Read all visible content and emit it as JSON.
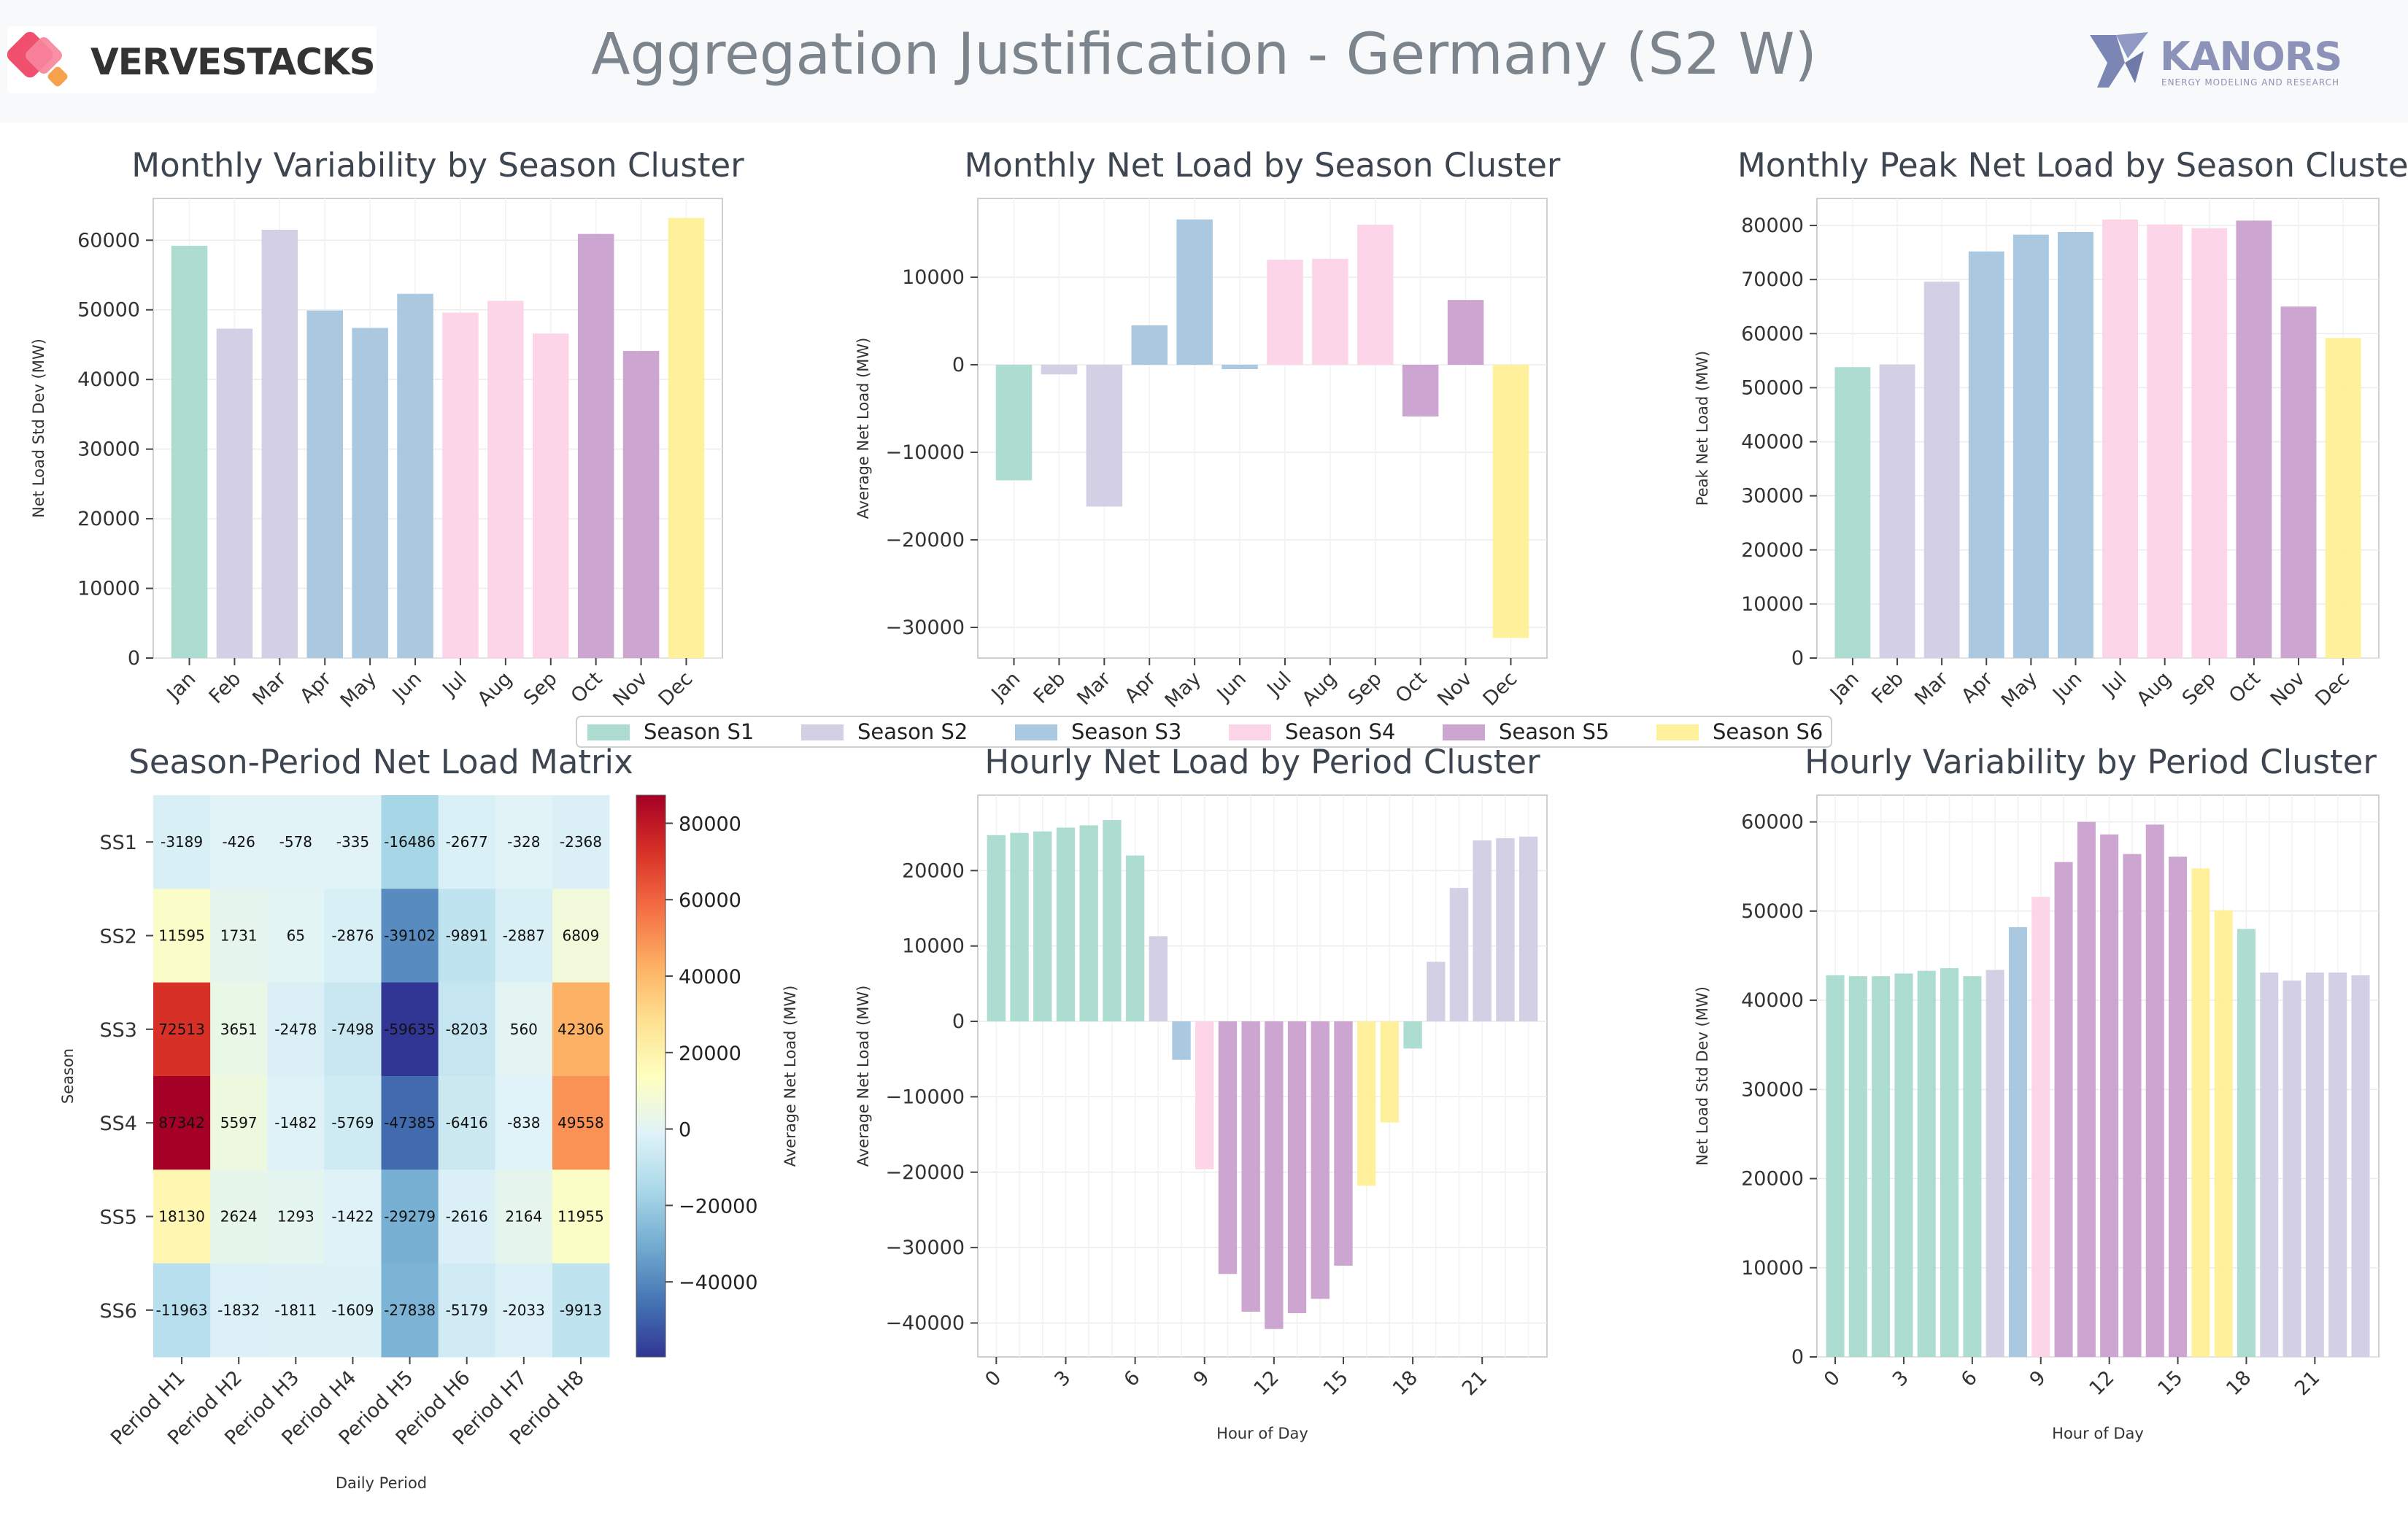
{
  "header": {
    "title": "Aggregation Justification - Germany (S2 W)",
    "logo_left": "VERVESTACKS",
    "logo_right": "KANORS",
    "logo_right_tagline": "ENERGY MODELING AND RESEARCH"
  },
  "colors": {
    "S1": "#a6d9cc",
    "S2": "#cfcce3",
    "S3": "#a3c4de",
    "S4": "#fcd2e6",
    "S5": "#c89dcc",
    "S6": "#fff093"
  },
  "legend": {
    "items": [
      {
        "key": "S1",
        "label": "Season S1"
      },
      {
        "key": "S2",
        "label": "Season S2"
      },
      {
        "key": "S3",
        "label": "Season S3"
      },
      {
        "key": "S4",
        "label": "Season S4"
      },
      {
        "key": "S5",
        "label": "Season S5"
      },
      {
        "key": "S6",
        "label": "Season S6"
      }
    ]
  },
  "chart_data": [
    {
      "id": "monthly-variability",
      "type": "bar",
      "title": "Monthly Variability by Season Cluster",
      "xlabel": "",
      "ylabel": "Net Load Std Dev (MW)",
      "categories": [
        "Jan",
        "Feb",
        "Mar",
        "Apr",
        "May",
        "Jun",
        "Jul",
        "Aug",
        "Sep",
        "Oct",
        "Nov",
        "Dec"
      ],
      "values": [
        59200,
        47300,
        61500,
        49900,
        47400,
        52300,
        49600,
        51300,
        46600,
        60900,
        44100,
        63200
      ],
      "season": [
        "S1",
        "S2",
        "S2",
        "S3",
        "S3",
        "S3",
        "S4",
        "S4",
        "S4",
        "S5",
        "S5",
        "S6"
      ],
      "ylim": [
        0,
        66000
      ],
      "yticks": [
        0,
        10000,
        20000,
        30000,
        40000,
        50000,
        60000
      ],
      "grid": true
    },
    {
      "id": "monthly-net-load",
      "type": "bar",
      "title": "Monthly Net Load by Season Cluster",
      "xlabel": "",
      "ylabel": "Average Net Load (MW)",
      "categories": [
        "Jan",
        "Feb",
        "Mar",
        "Apr",
        "May",
        "Jun",
        "Jul",
        "Aug",
        "Sep",
        "Oct",
        "Nov",
        "Dec"
      ],
      "values": [
        -13200,
        -1100,
        -16200,
        4500,
        16600,
        -500,
        12000,
        12100,
        16000,
        -5900,
        7400,
        -31200
      ],
      "season": [
        "S1",
        "S2",
        "S2",
        "S3",
        "S3",
        "S3",
        "S4",
        "S4",
        "S4",
        "S5",
        "S5",
        "S6"
      ],
      "ylim": [
        -33500,
        19000
      ],
      "yticks": [
        -30000,
        -20000,
        -10000,
        0,
        10000
      ],
      "grid": true
    },
    {
      "id": "monthly-peak-net-load",
      "type": "bar",
      "title": "Monthly Peak Net Load by Season Cluster",
      "xlabel": "",
      "ylabel": "Peak Net Load (MW)",
      "categories": [
        "Jan",
        "Feb",
        "Mar",
        "Apr",
        "May",
        "Jun",
        "Jul",
        "Aug",
        "Sep",
        "Oct",
        "Nov",
        "Dec"
      ],
      "values": [
        53800,
        54300,
        69600,
        75200,
        78300,
        78800,
        81100,
        80200,
        79500,
        80900,
        65000,
        59200
      ],
      "season": [
        "S1",
        "S2",
        "S2",
        "S3",
        "S3",
        "S3",
        "S4",
        "S4",
        "S4",
        "S5",
        "S5",
        "S6"
      ],
      "ylim": [
        0,
        85000
      ],
      "yticks": [
        0,
        10000,
        20000,
        30000,
        40000,
        50000,
        60000,
        70000,
        80000
      ],
      "grid": true
    },
    {
      "id": "season-period-matrix",
      "type": "heatmap",
      "title": "Season-Period Net Load Matrix",
      "xlabel": "Daily Period",
      "ylabel": "Season",
      "colorbar_label": "Average Net Load (MW)",
      "colorbar_ticks": [
        -40000,
        -20000,
        0,
        20000,
        40000,
        60000,
        80000
      ],
      "vmin": -59635,
      "vmax": 87342,
      "x": [
        "Period H1",
        "Period H2",
        "Period H3",
        "Period H4",
        "Period H5",
        "Period H6",
        "Period H7",
        "Period H8"
      ],
      "y": [
        "SS1",
        "SS2",
        "SS3",
        "SS4",
        "SS5",
        "SS6"
      ],
      "values": [
        [
          -3189,
          -426,
          -578,
          -335,
          -16486,
          -2677,
          -328,
          -2368
        ],
        [
          11595,
          1731,
          65,
          -2876,
          -39102,
          -9891,
          -2887,
          6809
        ],
        [
          72513,
          3651,
          -2478,
          -7498,
          -59635,
          -8203,
          560,
          42306
        ],
        [
          87342,
          5597,
          -1482,
          -5769,
          -47385,
          -6416,
          -838,
          49558
        ],
        [
          18130,
          2624,
          1293,
          -1422,
          -29279,
          -2616,
          2164,
          11955
        ],
        [
          -11963,
          -1832,
          -1811,
          -1609,
          -27838,
          -5179,
          -2033,
          -9913
        ]
      ]
    },
    {
      "id": "hourly-net-load",
      "type": "bar",
      "title": "Hourly Net Load by Period Cluster",
      "xlabel": "Hour of Day",
      "ylabel": "Average Net Load (MW)",
      "x": [
        0,
        1,
        2,
        3,
        4,
        5,
        6,
        7,
        8,
        9,
        10,
        11,
        12,
        13,
        14,
        15,
        16,
        17,
        18,
        19,
        20,
        21,
        22,
        23
      ],
      "values": [
        24700,
        25000,
        25200,
        25700,
        26000,
        26700,
        22000,
        11300,
        -5100,
        -19600,
        -33500,
        -38500,
        -40800,
        -38700,
        -36800,
        -32400,
        -21800,
        -13400,
        -3600,
        7900,
        17700,
        24000,
        24300,
        24500
      ],
      "period": [
        "S1",
        "S1",
        "S1",
        "S1",
        "S1",
        "S1",
        "S1",
        "S2",
        "S3",
        "S4",
        "S5",
        "S5",
        "S5",
        "S5",
        "S5",
        "S5",
        "S6",
        "S6",
        "S1",
        "S2",
        "S2",
        "S2",
        "S2",
        "S2"
      ],
      "xticks": [
        0,
        3,
        6,
        9,
        12,
        15,
        18,
        21
      ],
      "ylim": [
        -44500,
        30000
      ],
      "yticks": [
        -40000,
        -30000,
        -20000,
        -10000,
        0,
        10000,
        20000
      ],
      "grid": true
    },
    {
      "id": "hourly-variability",
      "type": "bar",
      "title": "Hourly Variability by Period Cluster",
      "xlabel": "Hour of Day",
      "ylabel": "Net Load Std Dev (MW)",
      "x": [
        0,
        1,
        2,
        3,
        4,
        5,
        6,
        7,
        8,
        9,
        10,
        11,
        12,
        13,
        14,
        15,
        16,
        17,
        18,
        19,
        20,
        21,
        22,
        23
      ],
      "values": [
        42800,
        42700,
        42700,
        43000,
        43300,
        43600,
        42700,
        43400,
        48200,
        51600,
        55500,
        60000,
        58600,
        56400,
        59700,
        56100,
        54800,
        50100,
        48000,
        43100,
        42200,
        43100,
        43100,
        42800
      ],
      "period": [
        "S1",
        "S1",
        "S1",
        "S1",
        "S1",
        "S1",
        "S1",
        "S2",
        "S3",
        "S4",
        "S5",
        "S5",
        "S5",
        "S5",
        "S5",
        "S5",
        "S6",
        "S6",
        "S1",
        "S2",
        "S2",
        "S2",
        "S2",
        "S2"
      ],
      "xticks": [
        0,
        3,
        6,
        9,
        12,
        15,
        18,
        21
      ],
      "ylim": [
        0,
        63000
      ],
      "yticks": [
        0,
        10000,
        20000,
        30000,
        40000,
        50000,
        60000
      ],
      "grid": true
    }
  ]
}
